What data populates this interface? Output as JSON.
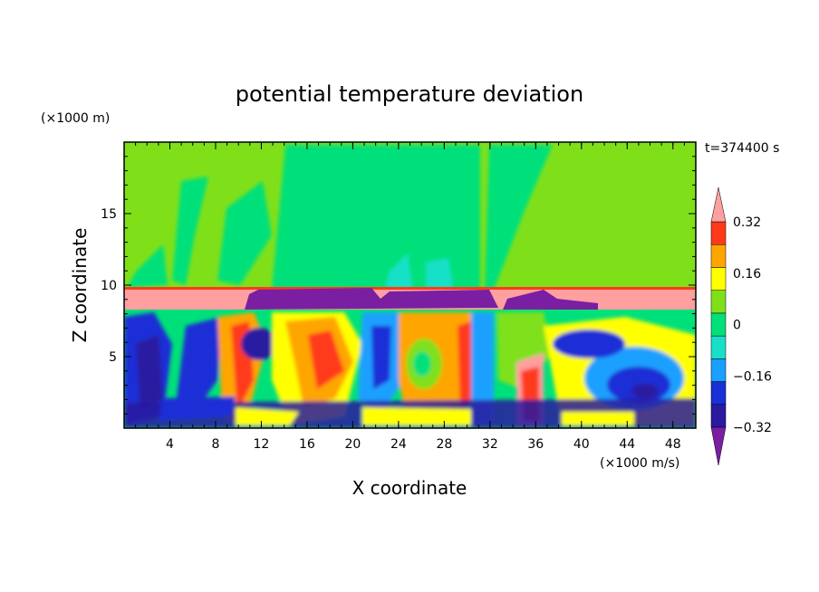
{
  "chart_data": {
    "type": "heatmap",
    "title": "potential temperature deviation",
    "xlabel": "X coordinate",
    "ylabel": "Z coordinate",
    "x_unit": "(×1000 m/s)",
    "y_unit": "(×1000 m)",
    "time_label": "t=374400 s",
    "xlim": [
      0,
      50
    ],
    "ylim": [
      0,
      20
    ],
    "x_ticks": [
      4,
      8,
      12,
      16,
      20,
      24,
      28,
      32,
      36,
      40,
      44,
      48
    ],
    "y_ticks": [
      5,
      10,
      15
    ],
    "colorbar": {
      "levels": [
        -0.4,
        -0.32,
        -0.24,
        -0.16,
        -0.08,
        0,
        0.08,
        0.16,
        0.24,
        0.32,
        0.4
      ],
      "tick_labels": [
        "0.32",
        "0.16",
        "0",
        "−0.16",
        "−0.32"
      ],
      "tick_values": [
        0.32,
        0.16,
        0,
        -0.16,
        -0.32
      ],
      "colors": [
        "#7a1fa2",
        "#2a1aa0",
        "#1a2fd6",
        "#1aa0ff",
        "#18e0c8",
        "#00e07a",
        "#7fe01a",
        "#ffff00",
        "#ffa500",
        "#ff3a1a",
        "#ff9f9f"
      ],
      "extend": "both"
    },
    "regions_description_colors": {
      "background_upper": "#7fe01a",
      "tropopause_band": "#ff9f9f",
      "anvil": "#7a1fa2"
    }
  }
}
